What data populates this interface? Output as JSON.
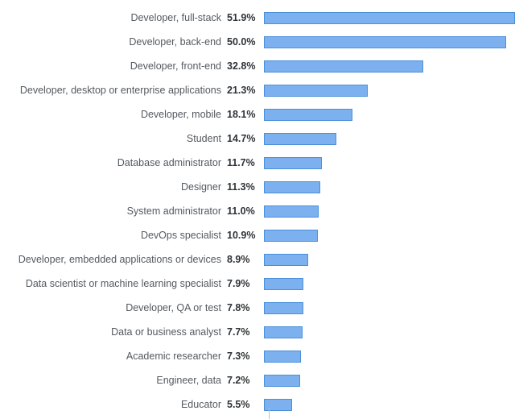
{
  "chart_data": {
    "type": "bar",
    "orientation": "horizontal",
    "categories": [
      "Developer, full-stack",
      "Developer, back-end",
      "Developer, front-end",
      "Developer, desktop or enterprise applications",
      "Developer, mobile",
      "Student",
      "Database administrator",
      "Designer",
      "System administrator",
      "DevOps specialist",
      "Developer, embedded applications or devices",
      "Data scientist or machine learning specialist",
      "Developer, QA or test",
      "Data or business analyst",
      "Academic researcher",
      "Engineer, data",
      "Educator"
    ],
    "values": [
      51.9,
      50.0,
      32.8,
      21.3,
      18.1,
      14.7,
      11.7,
      11.3,
      11.0,
      10.9,
      8.9,
      7.9,
      7.8,
      7.7,
      7.3,
      7.2,
      5.5
    ],
    "value_labels": [
      "51.9%",
      "50.0%",
      "32.8%",
      "21.3%",
      "18.1%",
      "14.7%",
      "11.7%",
      "11.3%",
      "11.0%",
      "10.9%",
      "8.9%",
      "7.9%",
      "7.8%",
      "7.7%",
      "7.3%",
      "7.2%",
      "5.5%"
    ],
    "title": "",
    "xlabel": "",
    "ylabel": "",
    "xlim": [
      0,
      52.2
    ],
    "grid": false,
    "legend": "none",
    "bar_fill_color": "#7cb0ef",
    "bar_border_color": "#4a90d9",
    "label_color": "#535a60",
    "value_color": "#2f3337"
  }
}
